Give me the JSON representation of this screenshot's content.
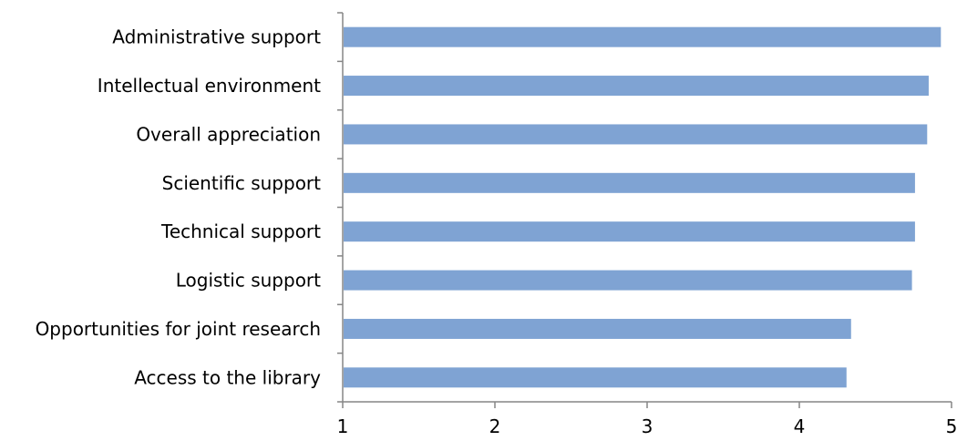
{
  "chart_data": {
    "type": "bar",
    "orientation": "horizontal",
    "title": "",
    "xlabel": "",
    "ylabel": "",
    "categories": [
      "Administrative support",
      "Intellectual environment",
      "Overall appreciation",
      "Scientific support",
      "Technical support",
      "Logistic support",
      "Opportunities for joint research",
      "Access to the library"
    ],
    "values": [
      4.93,
      4.85,
      4.84,
      4.76,
      4.76,
      4.74,
      4.34,
      4.31
    ],
    "xlim": [
      1,
      5
    ],
    "xticks": [
      "1",
      "2",
      "3",
      "4",
      "5"
    ],
    "bar_color": "#7FA3D3",
    "axis_color": "#868686",
    "grid": false,
    "legend": "none"
  }
}
